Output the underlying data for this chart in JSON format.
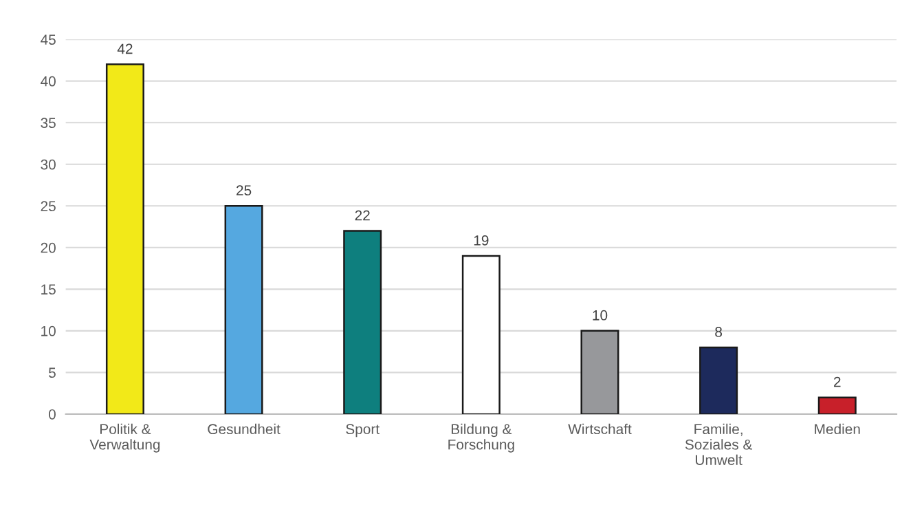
{
  "chart_data": {
    "type": "bar",
    "categories": [
      "Politik &\nVerwaltung",
      "Gesundheit",
      "Sport",
      "Bildung &\nForschung",
      "Wirtschaft",
      "Familie,\nSoziales &\nUmwelt",
      "Medien"
    ],
    "values": [
      42,
      25,
      22,
      19,
      10,
      8,
      2
    ],
    "colors": [
      "#f2e918",
      "#55a8e0",
      "#0e7f7e",
      "#ffffff",
      "#97989b",
      "#1d2a5c",
      "#c8202a"
    ],
    "ylim": [
      0,
      45
    ],
    "yticks": [
      0,
      5,
      10,
      15,
      20,
      25,
      30,
      35,
      40,
      45
    ],
    "grid": "y",
    "data_labels": true
  }
}
